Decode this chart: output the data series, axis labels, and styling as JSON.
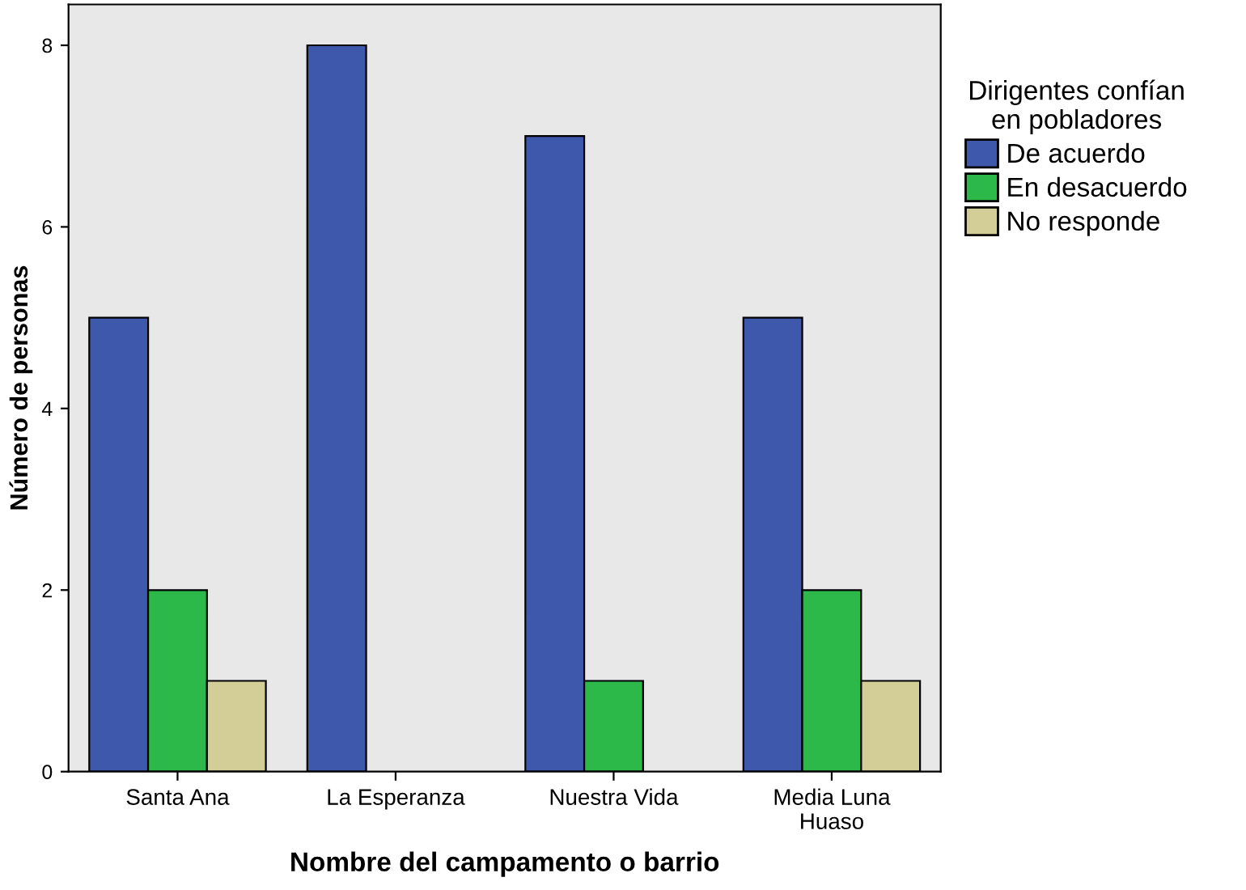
{
  "chart_data": {
    "type": "bar",
    "xlabel": "Nombre del campamento o barrio",
    "ylabel": "Número de personas",
    "legend_title": "Dirigentes confían\nen pobladores",
    "categories": [
      "Santa Ana",
      "La Esperanza",
      "Nuestra Vida",
      "Media Luna\nHuaso"
    ],
    "series": [
      {
        "name": "De acuerdo",
        "color": "#3e58ac",
        "values": [
          5,
          8,
          7,
          5
        ]
      },
      {
        "name": "En desacuerdo",
        "color": "#2db84a",
        "values": [
          2,
          null,
          1,
          2
        ]
      },
      {
        "name": "No responde",
        "color": "#d3ce97",
        "values": [
          1,
          null,
          null,
          1
        ]
      }
    ],
    "ylim": [
      0,
      8.45
    ],
    "yticks": [
      0,
      2,
      4,
      6,
      8
    ],
    "grid": false,
    "legend": "right"
  }
}
